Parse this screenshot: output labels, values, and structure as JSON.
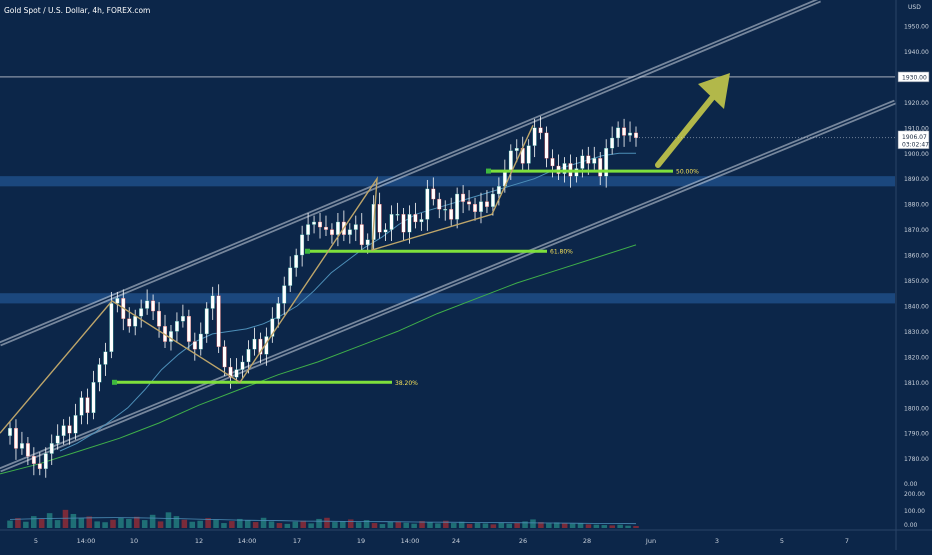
{
  "header": {
    "title": "Gold Spot / U.S. Dollar, 4h, FOREX.com"
  },
  "price_axis": {
    "unit": "USD",
    "ticks": [
      "1950.00",
      "1940.00",
      "1930.00",
      "1920.00",
      "1910.00",
      "1900.00",
      "1890.00",
      "1880.00",
      "1870.00",
      "1860.00",
      "1850.00",
      "1840.00",
      "1830.00",
      "1820.00",
      "1810.00",
      "1800.00",
      "1790.00",
      "1780.00"
    ],
    "tick_values": [
      1950,
      1940,
      1930,
      1920,
      1910,
      1900,
      1890,
      1880,
      1870,
      1860,
      1850,
      1840,
      1830,
      1820,
      1810,
      1800,
      1790,
      1780
    ],
    "highlight_label": "1930.00",
    "highlight_value": 1930,
    "last_price_label": "1906.07",
    "countdown_label": "03:02:47",
    "last_price_value": 1906.07
  },
  "volume_axis": {
    "ticks": [
      "200.00",
      "100.00",
      "0.00"
    ],
    "top_zero_label": "0.00"
  },
  "time_axis": {
    "labels": [
      "5",
      "14:00",
      "10",
      "12",
      "14:00",
      "17",
      "19",
      "14:00",
      "24",
      "26",
      "28",
      "Jun",
      "3",
      "5",
      "7"
    ]
  },
  "fib_levels": [
    {
      "label": "38.20%",
      "price": 1810
    },
    {
      "label": "61.80%",
      "price": 1861.5
    },
    {
      "label": "50.00%",
      "price": 1893
    }
  ],
  "zones": [
    {
      "price_low": 1887,
      "price_high": 1891
    },
    {
      "price_low": 1841,
      "price_high": 1845
    }
  ],
  "colors": {
    "background": "#0c2649",
    "up_candle": "#26a69a",
    "down_candle": "#ef5350",
    "fib_line": "#7ee03c",
    "zone": "#1f4e86",
    "channel": "#cdd6e1",
    "arrow": "#b2b84a",
    "ma_fast": "#4d8fb8",
    "ma_slow": "#3fae4a",
    "zigzag": "#bda56a"
  },
  "chart_data": {
    "type": "candlestick",
    "title": "Gold Spot / U.S. Dollar, 4h, FOREX.com",
    "ylabel": "USD",
    "ylim": [
      1772,
      1957
    ],
    "close_prices": [
      1792,
      1784,
      1786,
      1781,
      1778,
      1776,
      1782,
      1786,
      1789,
      1793,
      1790,
      1797,
      1804,
      1798,
      1810,
      1817,
      1822,
      1841,
      1843,
      1835,
      1832,
      1836,
      1839,
      1842,
      1838,
      1832,
      1826,
      1830,
      1834,
      1836,
      1826,
      1823,
      1829,
      1839,
      1844,
      1824,
      1816,
      1812,
      1815,
      1818,
      1823,
      1827,
      1821,
      1828,
      1835,
      1841,
      1848,
      1855,
      1860,
      1868,
      1872,
      1873,
      1871,
      1870,
      1868,
      1873,
      1868,
      1870,
      1872,
      1864,
      1866,
      1880,
      1869,
      1870,
      1876,
      1876,
      1869,
      1876,
      1873,
      1874,
      1886,
      1882,
      1878,
      1878,
      1874,
      1884,
      1881,
      1880,
      1877,
      1881,
      1879,
      1884,
      1887,
      1893,
      1901,
      1902,
      1896,
      1903,
      1910,
      1908,
      1898,
      1895,
      1892,
      1896,
      1891,
      1894,
      1899,
      1896,
      1898,
      1891,
      1902,
      1906,
      1910,
      1907,
      1908,
      1906.07
    ],
    "ma_fast": [
      1783,
      1786,
      1790,
      1795,
      1800,
      1807,
      1815,
      1821,
      1826,
      1829,
      1830,
      1831,
      1833,
      1836,
      1840,
      1846,
      1853,
      1858,
      1863,
      1867,
      1872,
      1876,
      1878,
      1880,
      1882,
      1884,
      1886,
      1888,
      1890,
      1893,
      1895,
      1897,
      1899,
      1900,
      1900
    ],
    "ma_slow": [
      1774,
      1778,
      1783,
      1788,
      1794,
      1801,
      1807,
      1813,
      1818,
      1824,
      1830,
      1837,
      1843,
      1849,
      1854,
      1859,
      1864
    ],
    "volume_ylim": [
      0,
      200
    ],
    "volume": [
      45,
      60,
      38,
      72,
      55,
      90,
      48,
      110,
      85,
      60,
      70,
      40,
      35,
      50,
      62,
      55,
      68,
      48,
      80,
      40,
      95,
      72,
      50,
      38,
      44,
      60,
      52,
      30,
      42,
      55,
      48,
      36,
      62,
      40,
      30,
      25,
      38,
      44,
      28,
      55,
      62,
      36,
      40,
      52,
      35,
      48,
      30,
      24,
      38,
      40,
      32,
      26,
      42,
      36,
      28,
      44,
      30,
      38,
      24,
      30,
      28,
      22,
      34,
      26,
      30,
      40,
      52,
      36,
      28,
      34,
      30,
      26,
      30,
      22,
      20,
      18,
      16,
      20,
      14,
      12
    ],
    "volume_ma": [
      52,
      55,
      58,
      60,
      62,
      63,
      62,
      60,
      57,
      54,
      51,
      48,
      46,
      44,
      42,
      41,
      40,
      39,
      38,
      37,
      36,
      35,
      34,
      33,
      32,
      31,
      30,
      29,
      28,
      27,
      26
    ]
  }
}
